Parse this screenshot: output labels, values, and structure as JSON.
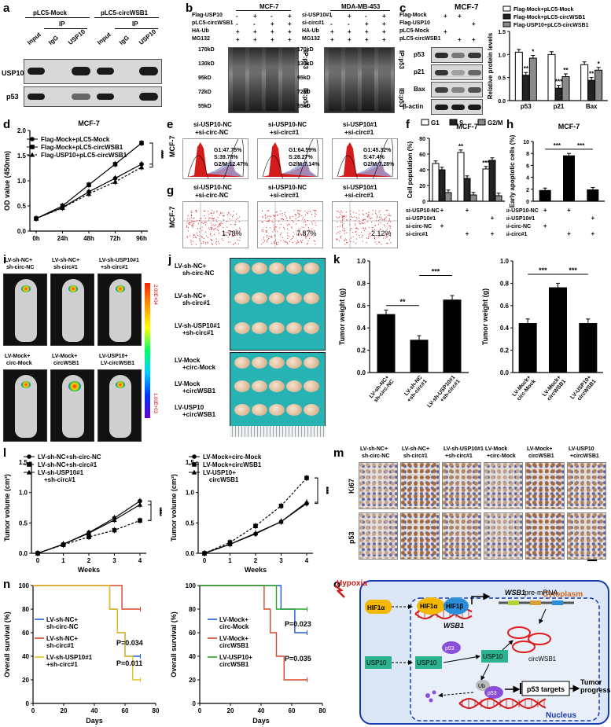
{
  "panels": [
    "a",
    "b",
    "c",
    "d",
    "e",
    "f",
    "g",
    "h",
    "i",
    "j",
    "k",
    "l",
    "m",
    "n",
    "o"
  ],
  "panel_a": {
    "groups": [
      "pLC5-Mock",
      "pLC5-circWSB1"
    ],
    "ip_label": "IP",
    "lanes": [
      "Input",
      "IgG",
      "USP10",
      "Input",
      "IgG",
      "USP10"
    ],
    "rows": [
      "USP10",
      "p53"
    ]
  },
  "panel_b": {
    "left_title": "MCF-7",
    "right_title": "MDA-MB-453",
    "left_conditions": [
      "Flag-USP10",
      "pLC5-circWSB1",
      "HA-Ub",
      "MG132"
    ],
    "left_signs": [
      [
        "-",
        "+",
        "-",
        "+"
      ],
      [
        "-",
        "-",
        "+",
        "+"
      ],
      [
        "+",
        "+",
        "+",
        "+"
      ],
      [
        "+",
        "+",
        "+",
        "+"
      ]
    ],
    "right_conditions": [
      "si-USP10#1",
      "si-circ#1",
      "HA-Ub",
      "MG132"
    ],
    "right_signs": [
      [
        "-",
        "+",
        "-",
        "+"
      ],
      [
        "-",
        "-",
        "+",
        "+"
      ],
      [
        "+",
        "+",
        "+",
        "+"
      ],
      [
        "+",
        "+",
        "+",
        "+"
      ]
    ],
    "markers": [
      "170kD",
      "130kD",
      "95kD",
      "72kD",
      "55kD"
    ],
    "side_labels": [
      "IP:p53",
      "IB:p53"
    ]
  },
  "panel_c": {
    "title": "MCF-7",
    "conditions": [
      "Flag-Mock",
      "Flag-USP10",
      "pLC5-Mock",
      "pLC5-circWSB1"
    ],
    "signs": [
      [
        "+",
        "+",
        ""
      ],
      [
        "",
        "",
        "+"
      ],
      [
        "+",
        "",
        ""
      ],
      [
        "",
        "+",
        "+"
      ]
    ],
    "rows": [
      "p53",
      "p21",
      "Bax",
      "β-actin"
    ]
  },
  "chart_c": {
    "type": "bar",
    "ylabel": "Relative protein levels",
    "ylim": [
      0,
      1.5
    ],
    "yticks": [
      "0.0",
      "0.5",
      "1.0",
      "1.5"
    ],
    "categories": [
      "p53",
      "p21",
      "Bax"
    ],
    "series": [
      {
        "name": "Flag-Mock+pLC5-Mock",
        "color": "#ffffff",
        "values": [
          1.05,
          1.0,
          0.78
        ]
      },
      {
        "name": "Flag-Mock+pLC5-circWSB1",
        "color": "#222222",
        "values": [
          0.55,
          0.27,
          0.44
        ]
      },
      {
        "name": "Flag-USP10+pLC5-circWSB1",
        "color": "#8a8a8a",
        "values": [
          0.92,
          0.52,
          0.66
        ]
      }
    ],
    "stars": [
      [
        "",
        "**",
        "*"
      ],
      [
        "",
        "***",
        "**"
      ],
      [
        "",
        "**",
        "*"
      ]
    ]
  },
  "chart_d": {
    "type": "line",
    "title": "MCF-7",
    "ylabel": "OD value (450nm)",
    "ylim": [
      0.0,
      2.0
    ],
    "yticks": [
      "0.0",
      "0.5",
      "1.0",
      "1.5",
      "2.0"
    ],
    "categories": [
      "0h",
      "24h",
      "48h",
      "72h",
      "96h"
    ],
    "series": [
      {
        "name": "Flag-Mock+pLC5-Mock",
        "values": [
          0.25,
          0.47,
          0.78,
          1.05,
          1.33
        ]
      },
      {
        "name": "Flag-Mock+pLC5-circWSB1",
        "values": [
          0.25,
          0.5,
          0.92,
          1.33,
          1.75
        ]
      },
      {
        "name": "Flag-USP10+pLC5-circWSB1",
        "values": [
          0.25,
          0.46,
          0.74,
          0.98,
          1.27
        ]
      }
    ],
    "stars": [
      "***",
      "***"
    ]
  },
  "panel_e": {
    "ylabel": "MCF-7",
    "labels": [
      "si-USP10-NC\n+si-circ-NC",
      "si-USP10-NC\n+si-circ#1",
      "si-USP10#1\n+si-circ#1"
    ],
    "stats": [
      [
        "G1:47.75%",
        "S:39.78%",
        "G2/M:12.47%"
      ],
      [
        "G1:64.59%",
        "S:28.27%",
        "G2/M:7.14%"
      ],
      [
        "G1:45.32%",
        "S:47.4%",
        "G2/M:7.28%"
      ]
    ]
  },
  "chart_f": {
    "type": "bar",
    "title": "MCF-7",
    "ylabel": "Cell population (%)",
    "ylim": [
      0,
      80
    ],
    "yticks": [
      "0",
      "20",
      "40",
      "60",
      "80"
    ],
    "categories": [
      "A",
      "B",
      "C"
    ],
    "series": [
      {
        "name": "G1",
        "color": "#ffffff",
        "values": [
          48,
          62,
          41
        ]
      },
      {
        "name": "S",
        "color": "#222222",
        "values": [
          40,
          29,
          52
        ]
      },
      {
        "name": "G2/M",
        "color": "#8a8a8a",
        "values": [
          11,
          8,
          7
        ]
      }
    ],
    "stars": [
      "",
      "**",
      "***"
    ]
  },
  "chart_h": {
    "type": "bar",
    "title": "MCF-7",
    "ylabel": "Early apoptotic cells (%)",
    "ylim": [
      0,
      10
    ],
    "yticks": [
      "0",
      "2",
      "4",
      "6",
      "8",
      "10"
    ],
    "categories": [
      "A",
      "B",
      "C"
    ],
    "values": [
      1.8,
      7.6,
      1.9
    ],
    "stars": [
      "***",
      "***"
    ]
  },
  "treat_fh": {
    "rows": [
      "si-USP10-NC",
      "si-USP10#1",
      "si-circ-NC",
      "si-circ#1"
    ],
    "signs": [
      [
        "+",
        "+",
        ""
      ],
      [
        "",
        "",
        "+"
      ],
      [
        "+",
        "",
        ""
      ],
      [
        "",
        "+",
        "+"
      ]
    ]
  },
  "panel_g": {
    "ylabel": "MCF-7",
    "labels": [
      "si-USP10-NC\n+si-circ-NC",
      "si-USP10-NC\n+si-circ#1",
      "si-USP10#1\n+si-circ#1"
    ],
    "percents": [
      "1.78%",
      "7.87%",
      "2.12%"
    ]
  },
  "panel_i": {
    "labels_top": [
      "LV-sh-NC+\nsh-circ-NC",
      "LV-sh-NC+\nsh-circ#1",
      "LV-sh-USP10#1\n+sh-circ#1"
    ],
    "labels_bottom": [
      "LV-Mock+\ncirc-Mock",
      "LV-Mock+\ncircWSB1",
      "LV-USP10+\nLV-circWSB1"
    ],
    "scale_max": "2.00E+04",
    "scale_min": "1.00E+03"
  },
  "panel_j": {
    "labels": [
      "LV-sh-NC+\nsh-circ-NC",
      "LV-sh-NC+\nsh-circ#1",
      "LV-sh-USP10#1\n+sh-circ#1",
      "LV-Mock\n+circ-Mock",
      "LV-Mock\n+circWSB1",
      "LV-USP10\n+circWSB1"
    ]
  },
  "chart_k1": {
    "type": "bar",
    "ylabel": "Tumor weight (g)",
    "ylim": [
      0,
      1.0
    ],
    "yticks": [
      "0.0",
      "0.2",
      "0.4",
      "0.6",
      "0.8",
      "1.0"
    ],
    "categories": [
      "LV-sh-NC+\nsh-circ-NC",
      "LV-sh-NC\n+sh-circ#1",
      "LV-sh-USP10#1\n+sh-circ#1"
    ],
    "values": [
      0.52,
      0.29,
      0.65
    ],
    "stars": [
      "**",
      "***"
    ]
  },
  "chart_k2": {
    "type": "bar",
    "ylabel": "Tumor weight (g)",
    "ylim": [
      0,
      1.0
    ],
    "yticks": [
      "0.0",
      "0.2",
      "0.4",
      "0.6",
      "0.8",
      "1.0"
    ],
    "categories": [
      "LV-Mock+\ncirc-Mock",
      "LV-Mock+\ncircWSB1",
      "LV-USP10+\ncircWSB1"
    ],
    "values": [
      0.44,
      0.76,
      0.44
    ],
    "stars": [
      "***",
      "***"
    ]
  },
  "chart_l1": {
    "type": "line",
    "ylabel": "Tumor volume (cm³)",
    "xlabel": "Weeks",
    "ylim": [
      0,
      1.5
    ],
    "yticks": [
      "0.0",
      "0.5",
      "1.0",
      "1.5"
    ],
    "x": [
      0,
      1,
      2,
      3,
      4
    ],
    "series": [
      {
        "name": "LV-sh-NC+sh-circ-NC",
        "values": [
          0,
          0.15,
          0.34,
          0.58,
          0.86
        ]
      },
      {
        "name": "LV-sh-NC+sh-circ#1",
        "values": [
          0,
          0.14,
          0.27,
          0.38,
          0.54
        ]
      },
      {
        "name": "LV-sh-USP10#1\n+sh-circ#1",
        "values": [
          0,
          0.15,
          0.33,
          0.55,
          0.8
        ]
      }
    ],
    "stars": [
      "***",
      "***"
    ]
  },
  "chart_l2": {
    "type": "line",
    "ylabel": "Tumor volume (cm³)",
    "xlabel": "Weeks",
    "ylim": [
      0,
      1.5
    ],
    "yticks": [
      "0.0",
      "0.5",
      "1.0",
      "1.5"
    ],
    "x": [
      0,
      1,
      2,
      3,
      4
    ],
    "series": [
      {
        "name": "LV-Mock+circ-Mock",
        "values": [
          0,
          0.15,
          0.32,
          0.52,
          0.82
        ]
      },
      {
        "name": "LV-Mock+circWSB1",
        "values": [
          0,
          0.18,
          0.45,
          0.78,
          1.24
        ]
      },
      {
        "name": "LV-USP10+\ncircWSB1",
        "values": [
          0,
          0.15,
          0.33,
          0.52,
          0.84
        ]
      }
    ],
    "stars": [
      "***",
      "***"
    ]
  },
  "panel_m": {
    "columns": [
      "LV-sh-NC+\nsh-circ-NC",
      "LV-sh-NC+\nsh-circ#1",
      "LV-sh-USP10#1\n+sh-circ#1",
      "LV-Mock\n+circ-Mock",
      "LV-Mock+\ncircWSB1",
      "LV-USP10\n+circWSB1"
    ],
    "rows": [
      "Ki67",
      "p53"
    ]
  },
  "chart_n1": {
    "type": "line",
    "ylabel": "Overall survival (%)",
    "xlabel": "Days",
    "xlim": [
      0,
      80
    ],
    "ylim": [
      0,
      100
    ],
    "xticks": [
      "0",
      "20",
      "40",
      "60",
      "80"
    ],
    "yticks": [
      "0",
      "20",
      "40",
      "60",
      "80",
      "100"
    ],
    "series": [
      {
        "name": "LV-sh-NC+\nsh-circ-NC",
        "color": "#1f5fd6",
        "values": [
          [
            0,
            100
          ],
          [
            50,
            100
          ],
          [
            50,
            80
          ],
          [
            55,
            80
          ],
          [
            55,
            60
          ],
          [
            60,
            60
          ],
          [
            60,
            40
          ],
          [
            70,
            40
          ]
        ]
      },
      {
        "name": "LV-sh-NC+\nsh-circ#1",
        "color": "#d9472b",
        "values": [
          [
            0,
            100
          ],
          [
            58,
            100
          ],
          [
            58,
            80
          ],
          [
            70,
            80
          ]
        ]
      },
      {
        "name": "LV-sh-USP10#1\n+sh-circ#1",
        "color": "#e8c21a",
        "values": [
          [
            0,
            100
          ],
          [
            50,
            100
          ],
          [
            50,
            80
          ],
          [
            55,
            80
          ],
          [
            55,
            60
          ],
          [
            60,
            60
          ],
          [
            60,
            40
          ],
          [
            65,
            40
          ],
          [
            65,
            20
          ],
          [
            70,
            20
          ]
        ]
      }
    ],
    "pvalues": [
      "P=0.034",
      "P=0.011"
    ]
  },
  "chart_n2": {
    "type": "line",
    "ylabel": "Overall survival (%)",
    "xlabel": "Days",
    "xlim": [
      0,
      80
    ],
    "ylim": [
      0,
      100
    ],
    "xticks": [
      "0",
      "20",
      "40",
      "60",
      "80"
    ],
    "yticks": [
      "0",
      "20",
      "40",
      "60",
      "80",
      "100"
    ],
    "series": [
      {
        "name": "LV-Mock+\ncirc-Mock",
        "color": "#1f5fd6",
        "values": [
          [
            0,
            100
          ],
          [
            53,
            100
          ],
          [
            53,
            80
          ],
          [
            62,
            80
          ],
          [
            62,
            60
          ],
          [
            70,
            60
          ]
        ]
      },
      {
        "name": "LV-Mock+\ncircWSB1",
        "color": "#d9472b",
        "values": [
          [
            0,
            100
          ],
          [
            42,
            100
          ],
          [
            42,
            80
          ],
          [
            46,
            80
          ],
          [
            46,
            60
          ],
          [
            50,
            60
          ],
          [
            50,
            40
          ],
          [
            55,
            40
          ],
          [
            55,
            20
          ],
          [
            70,
            20
          ]
        ]
      },
      {
        "name": "LV-USP10+\ncircWSB1",
        "color": "#2aa52a",
        "values": [
          [
            0,
            100
          ],
          [
            50,
            100
          ],
          [
            50,
            80
          ],
          [
            70,
            80
          ]
        ]
      }
    ],
    "pvalues": [
      "P=0.023",
      "P=0.035"
    ]
  },
  "panel_o": {
    "hypoxia": "Hypoxia",
    "cytoplasm": "Cytoplasm",
    "nucleus": "Nucleus",
    "hif1a": "HIF1α",
    "hif1b": "HIF1β",
    "pre_mrna": "pre-mRNA",
    "wsb1_italic": "WSB1",
    "circ": "circWSB1",
    "usp10": "USP10",
    "p53": "p53",
    "ub": "Ub",
    "targets": "p53 targets",
    "tumor": "Tumor\nprogression"
  }
}
